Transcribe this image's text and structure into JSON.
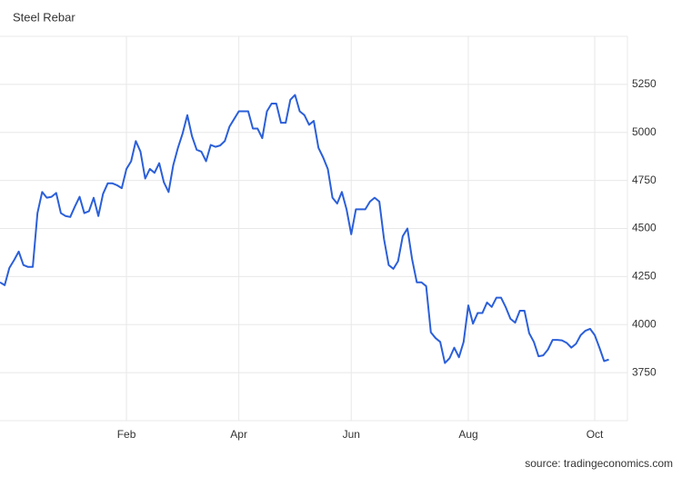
{
  "chart_data": {
    "type": "line",
    "title": "Steel Rebar",
    "source": "source: tradingeconomics.com",
    "categories": [
      null,
      null,
      null,
      null,
      null,
      null,
      null,
      null,
      null,
      null,
      null,
      null,
      null,
      null,
      null,
      null,
      null,
      null,
      null,
      null,
      null,
      null,
      null,
      null,
      null,
      null,
      null,
      "Feb",
      null,
      null,
      null,
      null,
      null,
      null,
      null,
      null,
      null,
      null,
      null,
      null,
      null,
      null,
      null,
      null,
      null,
      null,
      null,
      null,
      null,
      null,
      null,
      "Apr",
      null,
      null,
      null,
      null,
      null,
      null,
      null,
      null,
      null,
      null,
      null,
      null,
      null,
      null,
      null,
      null,
      null,
      null,
      null,
      null,
      null,
      null,
      null,
      "Jun",
      null,
      null,
      null,
      null,
      null,
      null,
      null,
      null,
      null,
      null,
      null,
      null,
      null,
      null,
      null,
      null,
      null,
      null,
      null,
      null,
      null,
      null,
      null,
      null,
      "Aug",
      null,
      null,
      null,
      null,
      null,
      null,
      null,
      null,
      null,
      null,
      null,
      null,
      null,
      null,
      null,
      null,
      null,
      null,
      null,
      null,
      null,
      null,
      null,
      null,
      null,
      null,
      "Oct",
      null,
      null,
      null
    ],
    "values": [
      4220,
      4205,
      4295,
      4335,
      4380,
      4310,
      4300,
      4300,
      4580,
      4690,
      4660,
      4665,
      4685,
      4580,
      4565,
      4560,
      4615,
      4665,
      4580,
      4590,
      4660,
      4565,
      4680,
      4735,
      4735,
      4725,
      4710,
      4810,
      4850,
      4955,
      4900,
      4760,
      4810,
      4790,
      4840,
      4740,
      4690,
      4830,
      4920,
      4995,
      5090,
      4980,
      4910,
      4900,
      4850,
      4935,
      4925,
      4932,
      4955,
      5030,
      5070,
      5110,
      5110,
      5110,
      5020,
      5020,
      4970,
      5110,
      5150,
      5150,
      5050,
      5050,
      5170,
      5195,
      5110,
      5090,
      5040,
      5060,
      4920,
      4870,
      4810,
      4660,
      4630,
      4690,
      4600,
      4470,
      4600,
      4600,
      4600,
      4640,
      4660,
      4640,
      4445,
      4310,
      4290,
      4330,
      4460,
      4500,
      4340,
      4220,
      4220,
      4200,
      3960,
      3930,
      3910,
      3800,
      3825,
      3880,
      3830,
      3910,
      4100,
      4005,
      4060,
      4060,
      4115,
      4092,
      4140,
      4140,
      4090,
      4030,
      4010,
      4072,
      4072,
      3955,
      3910,
      3835,
      3840,
      3870,
      3920,
      3920,
      3918,
      3905,
      3880,
      3900,
      3945,
      3968,
      3978,
      3945,
      3880,
      3810,
      3818
    ],
    "color": "#2b5fd9",
    "ylim": [
      3500,
      5500
    ],
    "yticks": [
      3750,
      4000,
      4250,
      4500,
      4750,
      5000,
      5250
    ],
    "grid": true
  }
}
